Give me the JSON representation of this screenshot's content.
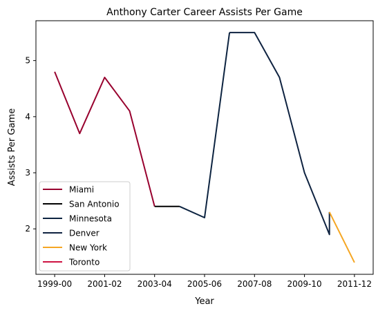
{
  "chart_data": {
    "type": "line",
    "title": "Anthony Carter Career Assists Per Game",
    "xlabel": "Year",
    "ylabel": "Assists Per Game",
    "x_tick_labels": [
      "1999-00",
      "2001-02",
      "2003-04",
      "2005-06",
      "2007-08",
      "2009-10",
      "2011-12"
    ],
    "x_tick_values": [
      0,
      2,
      4,
      6,
      8,
      10,
      12
    ],
    "y_ticks": [
      2,
      3,
      4,
      5
    ],
    "xlim": [
      -0.75,
      12.75
    ],
    "ylim": [
      1.19,
      5.71
    ],
    "grid": false,
    "legend_position": "lower-left",
    "series": [
      {
        "name": "Miami",
        "color": "#98002e",
        "x": [
          0,
          1,
          2,
          3,
          4
        ],
        "y": [
          4.8,
          3.7,
          4.7,
          4.1,
          2.4
        ]
      },
      {
        "name": "San Antonio",
        "color": "#000000",
        "x": [
          4,
          5
        ],
        "y": [
          2.4,
          2.4
        ]
      },
      {
        "name": "Minnesota",
        "color": "#0c2340",
        "x": [
          5,
          6,
          7
        ],
        "y": [
          2.4,
          2.2,
          5.5
        ]
      },
      {
        "name": "Denver",
        "color": "#0e2240",
        "x": [
          7,
          8,
          9,
          10,
          11,
          11
        ],
        "y": [
          5.5,
          5.5,
          4.7,
          3.0,
          1.9,
          2.3
        ]
      },
      {
        "name": "New York",
        "color": "#f5a623",
        "x": [
          11,
          12
        ],
        "y": [
          2.3,
          1.4
        ]
      },
      {
        "name": "Toronto",
        "color": "#ce1141",
        "x": [],
        "y": []
      }
    ]
  }
}
